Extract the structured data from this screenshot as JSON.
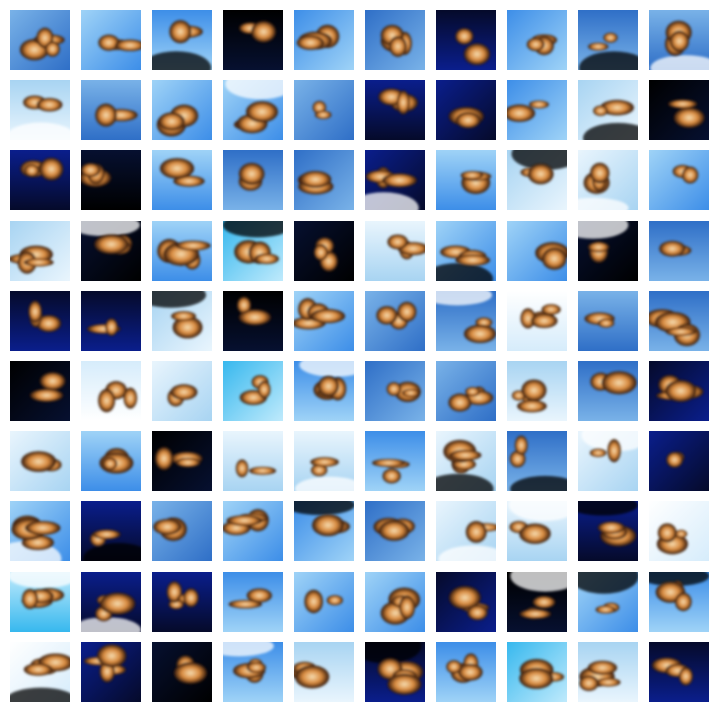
{
  "grid": {
    "rows": 10,
    "columns": 10,
    "tiles": [
      [
        "mid",
        "sky",
        "sky",
        "dark",
        "sky",
        "mid",
        "navy",
        "sky",
        "mid",
        "mid"
      ],
      [
        "pale",
        "mid",
        "sky",
        "sky",
        "mid",
        "navy",
        "navy",
        "sky",
        "pale",
        "dark"
      ],
      [
        "navy",
        "dark",
        "sky",
        "mid",
        "mid",
        "navy",
        "sky",
        "pale",
        "pale",
        "sky"
      ],
      [
        "pale",
        "dark",
        "sky",
        "cyan",
        "dark",
        "pale",
        "sky",
        "sky",
        "dark",
        "mid"
      ],
      [
        "navy",
        "navy",
        "pale",
        "dark",
        "sky",
        "mid",
        "mid",
        "white",
        "mid",
        "mid"
      ],
      [
        "dark",
        "white",
        "pale",
        "cyan",
        "sky",
        "mid",
        "mid",
        "pale",
        "mid",
        "navy"
      ],
      [
        "pale",
        "sky",
        "dark",
        "pale",
        "pale",
        "sky",
        "pale",
        "mid",
        "pale",
        "navy"
      ],
      [
        "sky",
        "navy",
        "mid",
        "sky",
        "sky",
        "mid",
        "pale",
        "pale",
        "navy",
        "white"
      ],
      [
        "cyan",
        "navy",
        "navy",
        "sky",
        "sky",
        "sky",
        "navy",
        "dark",
        "sky",
        "sky"
      ],
      [
        "white",
        "navy",
        "dark",
        "sky",
        "pale",
        "navy",
        "sky",
        "cyan",
        "pale",
        "navy"
      ]
    ]
  },
  "palette": {
    "navy": [
      "#0a1e8c",
      "#050a2a"
    ],
    "sky": [
      "#3d8ee8",
      "#9fd3f7"
    ],
    "pale": [
      "#a8d4f2",
      "#e9f5fd"
    ],
    "cyan": [
      "#37b8ee",
      "#bfeafc"
    ],
    "dark": [
      "#061030",
      "#000000"
    ],
    "mid": [
      "#2f6fc7",
      "#79b2e8"
    ],
    "white": [
      "#ffffff",
      "#d6ecfb"
    ],
    "blob_core": "#f6dcb0",
    "blob_mid": "#d88a3e",
    "blob_edge": "#2a1208"
  }
}
